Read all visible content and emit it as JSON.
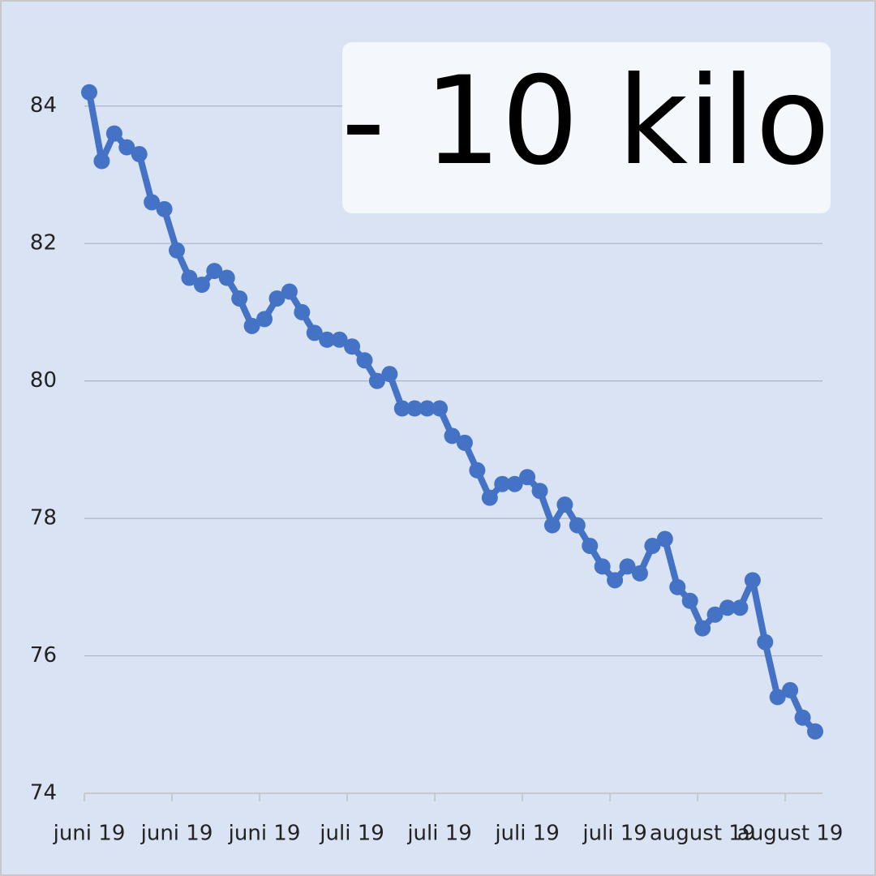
{
  "chart_data": {
    "type": "line",
    "annotation": "- 10 kilo",
    "categories": [
      "juni 19",
      null,
      null,
      null,
      null,
      null,
      null,
      "juni 19",
      null,
      null,
      null,
      null,
      null,
      null,
      "juni 19",
      null,
      null,
      null,
      null,
      null,
      null,
      "juli 19",
      null,
      null,
      null,
      null,
      null,
      null,
      "juli 19",
      null,
      null,
      null,
      null,
      null,
      null,
      "juli 19",
      null,
      null,
      null,
      null,
      null,
      null,
      "juli 19",
      null,
      null,
      null,
      null,
      null,
      null,
      "august 19",
      null,
      null,
      null,
      null,
      null,
      null,
      "august 19",
      null,
      null
    ],
    "series": [
      {
        "color": "#4472c4",
        "values": [
          84.2,
          83.2,
          83.6,
          83.4,
          83.3,
          82.6,
          82.5,
          81.9,
          81.5,
          81.4,
          81.6,
          81.5,
          81.2,
          80.8,
          80.9,
          81.2,
          81.3,
          81.0,
          80.7,
          80.6,
          80.6,
          80.5,
          80.3,
          80.0,
          80.1,
          79.6,
          79.6,
          79.6,
          79.6,
          79.2,
          79.1,
          78.7,
          78.3,
          78.5,
          78.5,
          78.6,
          78.4,
          77.9,
          78.2,
          77.9,
          77.6,
          77.3,
          77.1,
          77.3,
          77.2,
          77.6,
          77.7,
          77.0,
          76.8,
          76.4,
          76.6,
          76.7,
          76.7,
          77.1,
          76.2,
          75.4,
          75.5,
          75.1,
          74.9
        ]
      }
    ],
    "ylim": [
      74,
      85
    ],
    "yticks": [
      74,
      76,
      78,
      80,
      82,
      84
    ],
    "grid": true
  }
}
